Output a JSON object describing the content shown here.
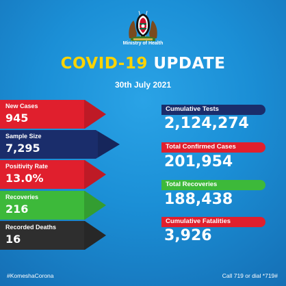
{
  "header": {
    "ministry": "Ministry of Health",
    "title_part1": "COVID-19",
    "title_part2": "UPDATE",
    "date": "30th July 2021"
  },
  "left_stats": [
    {
      "label": "New Cases",
      "value": "945",
      "color": "#e01f2d"
    },
    {
      "label": "Sample Size",
      "value": "7,295",
      "color": "#1a2d6b"
    },
    {
      "label": "Positivity Rate",
      "value": "13.0%",
      "color": "#e01f2d"
    },
    {
      "label": "Recoveries",
      "value": "216",
      "color": "#3db93a"
    },
    {
      "label": "Recorded Deaths",
      "value": "16",
      "color": "#2e2e2e"
    }
  ],
  "right_stats": [
    {
      "label": "Cumulative Tests",
      "value": "2,124,274",
      "color": "#1a2d6b"
    },
    {
      "label": "Total Confirmed Cases",
      "value": "201,954",
      "color": "#e01f2d"
    },
    {
      "label": "Total Recoveries",
      "value": "188,438",
      "color": "#3db93a"
    },
    {
      "label": "Cumulative Fatalities",
      "value": "3,926",
      "color": "#e01f2d"
    }
  ],
  "footer": {
    "hashtag": "#KomeshaCorona",
    "call": "Call 719 or dial *719#"
  }
}
